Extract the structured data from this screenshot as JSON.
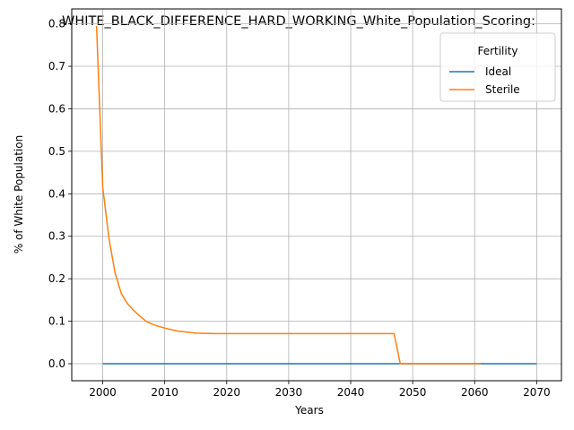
{
  "chart_data": {
    "type": "line",
    "title": "WHITE_BLACK_DIFFERENCE_HARD_WORKING_White_Population_Scoring:",
    "xlabel": "Years",
    "ylabel": "% of White Population",
    "xlim": [
      1995,
      2074
    ],
    "ylim": [
      -0.04,
      0.835
    ],
    "xticks": [
      2000,
      2010,
      2020,
      2030,
      2040,
      2050,
      2060,
      2070
    ],
    "yticks": [
      0.0,
      0.1,
      0.2,
      0.3,
      0.4,
      0.5,
      0.6,
      0.7,
      0.8
    ],
    "ytick_labels": [
      "0.0",
      "0.1",
      "0.2",
      "0.3",
      "0.4",
      "0.5",
      "0.6",
      "0.7",
      "0.8"
    ],
    "xtick_labels": [
      "2000",
      "2010",
      "2020",
      "2030",
      "2040",
      "2050",
      "2060",
      "2070"
    ],
    "grid": true,
    "legend": {
      "title": "Fertility",
      "placement": "top-right"
    },
    "series": [
      {
        "name": "Ideal",
        "color": "#1f77b4",
        "x": [
          2000,
          2070
        ],
        "y": [
          0.0,
          0.0
        ]
      },
      {
        "name": "Sterile",
        "color": "#ff7f0e",
        "x": [
          1999,
          2000,
          2001,
          2002,
          2003,
          2004,
          2005,
          2006,
          2007,
          2008,
          2009,
          2010,
          2012,
          2015,
          2018,
          2020,
          2025,
          2030,
          2035,
          2040,
          2045,
          2047,
          2048,
          2050,
          2055,
          2061
        ],
        "y": [
          0.795,
          0.415,
          0.295,
          0.213,
          0.165,
          0.141,
          0.125,
          0.112,
          0.1,
          0.093,
          0.088,
          0.084,
          0.077,
          0.072,
          0.071,
          0.071,
          0.071,
          0.071,
          0.071,
          0.071,
          0.071,
          0.071,
          0.0,
          0.0,
          0.0,
          0.0
        ]
      }
    ]
  }
}
